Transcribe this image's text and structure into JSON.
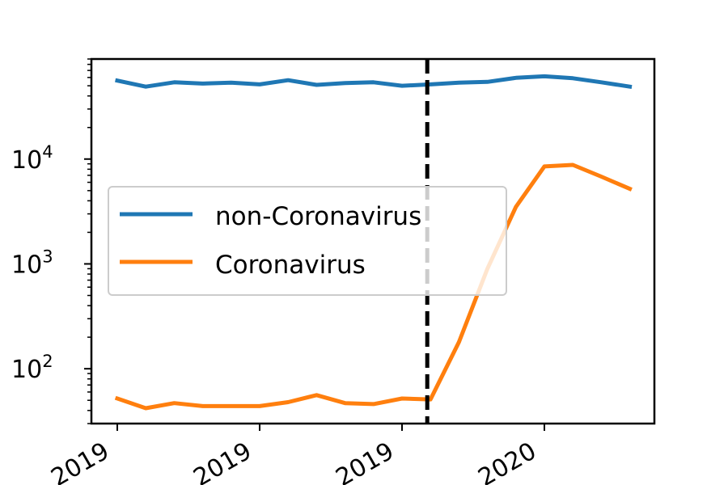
{
  "chart_data": {
    "type": "line",
    "title": "",
    "xlabel": "",
    "ylabel": "",
    "y_scale": "log",
    "ylim": [
      30,
      90000
    ],
    "grid": false,
    "legend_position": "center-left",
    "x_ticks": [
      "2019",
      "2019",
      "2019",
      "2020"
    ],
    "y_ticks": [
      {
        "value": 100,
        "base": "10",
        "exp": "2"
      },
      {
        "value": 1000,
        "base": "10",
        "exp": "3"
      },
      {
        "value": 10000,
        "base": "10",
        "exp": "4"
      }
    ],
    "marker_line": {
      "style": "dashed",
      "color": "#000000"
    },
    "series": [
      {
        "name": "non-Coronavirus",
        "color": "#1f77b4",
        "values": [
          56000,
          49000,
          54000,
          52500,
          53500,
          51500,
          56500,
          51000,
          53000,
          54000,
          50000,
          51500,
          53500,
          54500,
          59500,
          61500,
          59000,
          54000,
          49000
        ]
      },
      {
        "name": "Coronavirus",
        "color": "#ff7f0e",
        "values": [
          52,
          42,
          47,
          44,
          44,
          44,
          48,
          56,
          47,
          46,
          52,
          51,
          180,
          900,
          3500,
          8500,
          8800,
          6800,
          5200
        ]
      }
    ]
  }
}
